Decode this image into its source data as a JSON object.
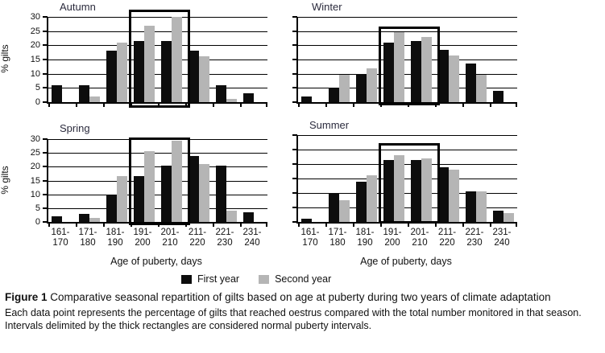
{
  "figure": {
    "ylabel": "% gilts",
    "xlabel": "Age of puberty, days",
    "legend": [
      {
        "name": "First year",
        "color": "#0d0d0d"
      },
      {
        "name": "Second year",
        "color": "#b5b5b5"
      }
    ],
    "caption": {
      "label": "Figure 1",
      "title": "Comparative seasonal repartition of gilts based on age at puberty during two years of climate adaptation",
      "body": "Each data point represents the percentage of gilts that reached oestrus compared with the total number monitored in that season. Intervals delimited by the thick rectangles are considered normal puberty intervals."
    }
  },
  "chart_data": [
    {
      "type": "bar",
      "title": "Autumn",
      "categories": [
        "161-170",
        "171-180",
        "181-190",
        "191-200",
        "201-210",
        "211-220",
        "221-230",
        "231-240"
      ],
      "series": [
        {
          "name": "First year",
          "color": "#0d0d0d",
          "values": [
            6,
            6,
            18,
            21.5,
            21.5,
            18,
            6,
            3
          ]
        },
        {
          "name": "Second year",
          "color": "#b5b5b5",
          "values": [
            0,
            2,
            21,
            27,
            30,
            16,
            1,
            0
          ]
        }
      ],
      "ylabel": "% gilts",
      "ylim": [
        0,
        30
      ],
      "ytick_step": 5,
      "grid": true,
      "highlight_interval": [
        "191-200",
        "201-210"
      ]
    },
    {
      "type": "bar",
      "title": "Winter",
      "categories": [
        "161-170",
        "171-180",
        "181-190",
        "191-200",
        "201-210",
        "211-220",
        "221-230",
        "231-240"
      ],
      "series": [
        {
          "name": "First year",
          "color": "#0d0d0d",
          "values": [
            2,
            5,
            10,
            21,
            21.5,
            18.5,
            13.5,
            4
          ]
        },
        {
          "name": "Second year",
          "color": "#b5b5b5",
          "values": [
            0,
            9.5,
            12,
            24.5,
            23,
            16.5,
            9.5,
            0
          ]
        }
      ],
      "ylabel": "",
      "ylim": [
        0,
        30
      ],
      "ytick_step": 5,
      "grid": true,
      "highlight_interval": [
        "191-200",
        "201-210"
      ]
    },
    {
      "type": "bar",
      "title": "Spring",
      "categories": [
        "161-170",
        "171-180",
        "181-190",
        "191-200",
        "201-210",
        "211-220",
        "221-230",
        "231-240"
      ],
      "series": [
        {
          "name": "First year",
          "color": "#0d0d0d",
          "values": [
            2,
            3,
            9.5,
            16.5,
            20.5,
            24,
            20.5,
            3.5
          ]
        },
        {
          "name": "Second year",
          "color": "#b5b5b5",
          "values": [
            0,
            1.5,
            16.5,
            25.5,
            29.5,
            21,
            4,
            0
          ]
        }
      ],
      "ylabel": "% gilts",
      "ylim": [
        0,
        30
      ],
      "ytick_step": 5,
      "grid": true,
      "highlight_interval": [
        "191-200",
        "201-210"
      ]
    },
    {
      "type": "bar",
      "title": "Summer",
      "categories": [
        "161-170",
        "171-180",
        "181-190",
        "191-200",
        "201-210",
        "211-220",
        "221-230",
        "231-240"
      ],
      "series": [
        {
          "name": "First year",
          "color": "#0d0d0d",
          "values": [
            1,
            10,
            14,
            21.5,
            21.5,
            19,
            10.5,
            4
          ]
        },
        {
          "name": "Second year",
          "color": "#b5b5b5",
          "values": [
            0,
            7.5,
            16,
            23,
            22,
            18,
            10.5,
            3
          ]
        }
      ],
      "ylabel": "",
      "ylim": [
        0,
        30
      ],
      "ytick_step": 5,
      "grid": true,
      "highlight_interval": [
        "191-200",
        "201-210"
      ]
    }
  ]
}
